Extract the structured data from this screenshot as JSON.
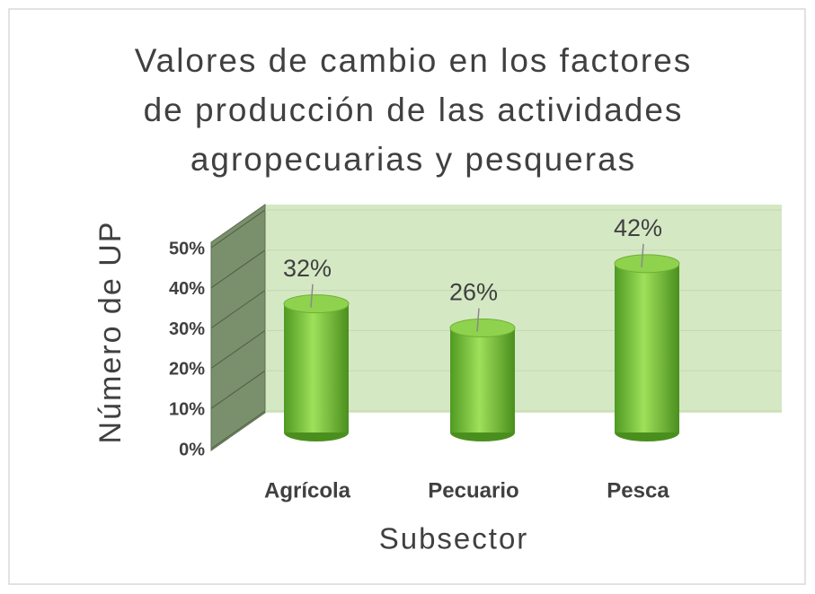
{
  "chart_data": {
    "type": "bar3d",
    "title": "Valores de cambio en los factores de producción de las actividades agropecuarias y pesqueras",
    "x_label": "Subsector",
    "y_label": "Número de UP",
    "categories": [
      "Agrícola",
      "Pecuario",
      "Pesca"
    ],
    "values": [
      32,
      26,
      42
    ],
    "value_labels": [
      "32%",
      "26%",
      "42%"
    ],
    "color": "#7cc242",
    "ylim": [
      0,
      50
    ],
    "yticks": [
      {
        "value": 0,
        "label": "0%"
      },
      {
        "value": 10,
        "label": "10%"
      },
      {
        "value": 20,
        "label": "20%"
      },
      {
        "value": 30,
        "label": "30%"
      },
      {
        "value": 40,
        "label": "40%"
      },
      {
        "value": 50,
        "label": "50%"
      }
    ],
    "grid": true
  }
}
